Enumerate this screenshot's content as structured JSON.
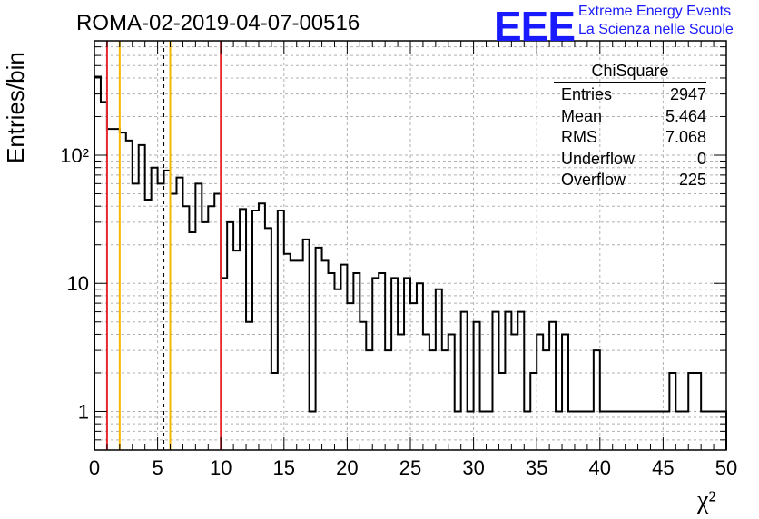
{
  "header": {
    "title": "ROMA-02-2019-04-07-00516"
  },
  "logo": {
    "mark": "EEE",
    "line1": "Extreme Energy Events",
    "line2": "La Scienza nelle Scuole",
    "color": "#1a1aff"
  },
  "stats_box": {
    "title": "ChiSquare",
    "rows": [
      {
        "label": "Entries",
        "value": "2947"
      },
      {
        "label": "Mean",
        "value": "5.464"
      },
      {
        "label": "RMS",
        "value": "7.068"
      },
      {
        "label": "Underflow",
        "value": "0"
      },
      {
        "label": "Overflow",
        "value": "225"
      }
    ]
  },
  "chart_data": {
    "type": "bar",
    "histogram": true,
    "xlabel": "χ²",
    "ylabel": "Entries/bin",
    "xlim": [
      0,
      50
    ],
    "ylim": [
      0.5,
      780
    ],
    "yscale": "log",
    "grid": true,
    "bin_width": 0.5,
    "x_ticks": [
      "0",
      "5",
      "10",
      "15",
      "20",
      "25",
      "30",
      "35",
      "40",
      "45",
      "50"
    ],
    "y_ticks": [
      {
        "value": 1,
        "label": "1"
      },
      {
        "value": 10,
        "label": "10"
      },
      {
        "value": 100,
        "label": "10²"
      }
    ],
    "values": [
      410,
      260,
      160,
      160,
      150,
      130,
      60,
      120,
      45,
      80,
      60,
      76,
      50,
      67,
      40,
      25,
      60,
      30,
      40,
      50,
      11,
      30,
      18,
      38,
      5,
      37,
      42,
      27,
      2,
      37,
      17,
      15,
      15,
      22,
      1,
      19,
      15,
      12,
      9,
      14,
      7,
      12,
      5,
      3,
      11,
      12,
      3,
      11,
      4,
      11,
      7,
      10,
      4,
      3,
      9,
      3,
      4,
      1,
      6,
      1,
      5,
      1,
      1,
      6,
      2,
      6,
      4,
      6,
      1,
      2,
      4,
      3,
      5,
      1,
      4,
      1,
      1,
      1,
      1,
      3,
      1,
      1,
      1,
      1,
      1,
      1,
      1,
      1,
      1,
      1,
      1,
      2,
      1,
      1,
      2,
      2,
      1,
      1,
      1,
      1
    ],
    "vertical_lines": [
      {
        "x": 1,
        "color": "#e8262e",
        "style": "solid"
      },
      {
        "x": 2,
        "color": "#f5b800",
        "style": "solid"
      },
      {
        "x": 5.464,
        "color": "#000000",
        "style": "dashed"
      },
      {
        "x": 6,
        "color": "#f5b800",
        "style": "solid"
      },
      {
        "x": 10,
        "color": "#e8262e",
        "style": "solid"
      }
    ]
  }
}
